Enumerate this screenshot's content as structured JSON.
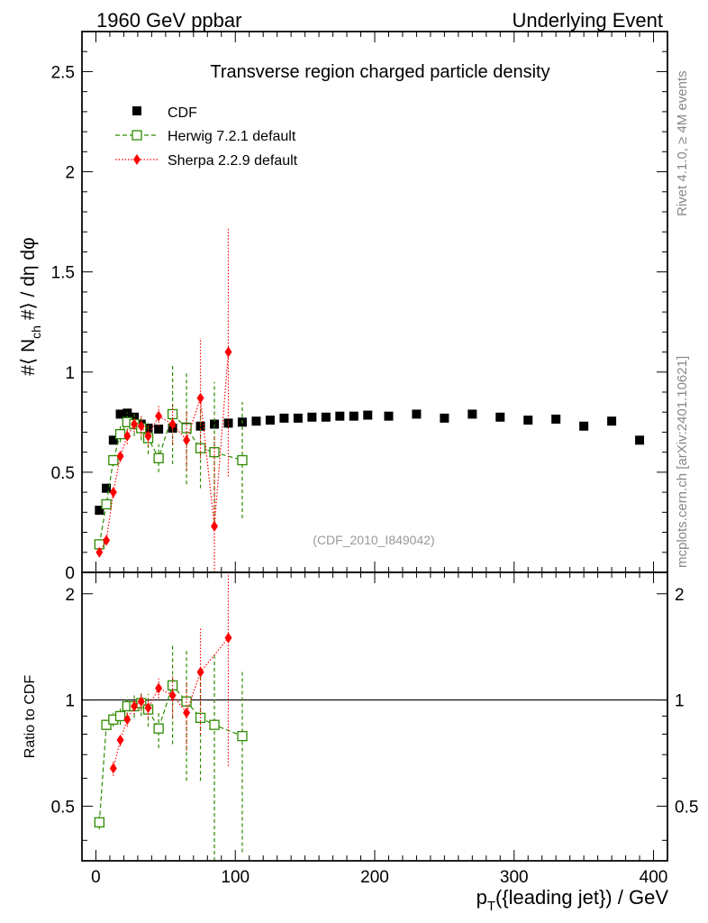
{
  "header": {
    "left": "1960 GeV ppbar",
    "right": "Underlying Event"
  },
  "side_labels": {
    "rivet": "Rivet 4.1.0, ≥ 4M events",
    "mcplots": "mcplots.cern.ch [arXiv:2401.10621]"
  },
  "colors": {
    "cdf": "#000000",
    "herwig": "#2e8b00",
    "sherpa": "#ff0000"
  },
  "chart_data": [
    {
      "type": "scatter",
      "title": "Transverse region charged particle density",
      "watermark": "(CDF_2010_I849042)",
      "ylabel": "#⟨ N_ch #⟩ / dη dφ",
      "ylabel_main": "#⟨ N",
      "ylabel_sub": "ch",
      "ylabel_rest": " #⟩ / dη dφ",
      "xlim": [
        -10,
        410
      ],
      "ylim": [
        0,
        2.7
      ],
      "yticks": [
        0,
        0.5,
        1,
        1.5,
        2,
        2.5
      ],
      "ytick_labels": [
        "0",
        "0.5",
        "1",
        "1.5",
        "2",
        "2.5"
      ],
      "legend": [
        {
          "key": "cdf",
          "label": "CDF"
        },
        {
          "key": "herwig",
          "label": "Herwig 7.2.1 default"
        },
        {
          "key": "sherpa",
          "label": "Sherpa 2.2.9 default"
        }
      ],
      "series": [
        {
          "name": "CDF",
          "key": "cdf",
          "marker": "square",
          "x": [
            2.5,
            7.5,
            12.5,
            17.5,
            22.5,
            27.5,
            32.5,
            37.5,
            45,
            55,
            65,
            75,
            85,
            95,
            105,
            115,
            125,
            135,
            145,
            155,
            165,
            175,
            185,
            195,
            210,
            230,
            250,
            270,
            290,
            310,
            330,
            350,
            370,
            390
          ],
          "y": [
            0.31,
            0.42,
            0.66,
            0.79,
            0.795,
            0.775,
            0.74,
            0.72,
            0.715,
            0.72,
            0.725,
            0.73,
            0.74,
            0.745,
            0.75,
            0.755,
            0.76,
            0.77,
            0.77,
            0.775,
            0.775,
            0.78,
            0.78,
            0.785,
            0.78,
            0.79,
            0.77,
            0.79,
            0.775,
            0.76,
            0.765,
            0.73,
            0.755,
            0.66
          ]
        },
        {
          "name": "Herwig 7.2.1 default",
          "key": "herwig",
          "marker": "open-square",
          "x": [
            2.5,
            7.5,
            12.5,
            17.5,
            22.5,
            27.5,
            32.5,
            37.5,
            45,
            55,
            65,
            75,
            85,
            105
          ],
          "y": [
            0.14,
            0.34,
            0.56,
            0.69,
            0.75,
            0.74,
            0.72,
            0.67,
            0.57,
            0.79,
            0.72,
            0.62,
            0.6,
            0.56
          ],
          "err": [
            0.01,
            0.02,
            0.03,
            0.04,
            0.05,
            0.06,
            0.06,
            0.08,
            0.07,
            0.25,
            0.28,
            0.2,
            0.35,
            0.29
          ]
        },
        {
          "name": "Sherpa 2.2.9 default",
          "key": "sherpa",
          "marker": "diamond",
          "x": [
            2.5,
            7.5,
            12.5,
            17.5,
            22.5,
            27.5,
            32.5,
            37.5,
            45,
            55,
            65,
            75,
            85,
            95
          ],
          "y": [
            0.1,
            0.16,
            0.4,
            0.58,
            0.68,
            0.74,
            0.73,
            0.68,
            0.78,
            0.74,
            0.66,
            0.87,
            0.23,
            1.1
          ],
          "err": [
            0.01,
            0.02,
            0.03,
            0.03,
            0.04,
            0.04,
            0.05,
            0.05,
            0.05,
            0.1,
            0.15,
            0.3,
            0.45,
            0.62
          ]
        }
      ]
    },
    {
      "type": "scatter",
      "title": "",
      "ylabel": "Ratio to CDF",
      "xlabel": "p_T({leading jet}) / GeV",
      "xlabel_main": "p",
      "xlabel_sub": "T",
      "xlabel_rest": "({leading jet}) / GeV",
      "xlim": [
        -10,
        410
      ],
      "ylim": [
        0.35,
        2.3
      ],
      "xticks": [
        0,
        100,
        200,
        300,
        400
      ],
      "xtick_labels": [
        "0",
        "100",
        "200",
        "300",
        "400"
      ],
      "yticks": [
        0.5,
        1,
        2
      ],
      "ytick_labels": [
        "0.5",
        "1",
        "2"
      ],
      "reference_line": 1,
      "series": [
        {
          "name": "Herwig 7.2.1 default",
          "key": "herwig",
          "marker": "open-square",
          "x": [
            2.5,
            7.5,
            12.5,
            17.5,
            22.5,
            27.5,
            32.5,
            37.5,
            45,
            55,
            65,
            75,
            85,
            105
          ],
          "y": [
            0.45,
            0.85,
            0.88,
            0.9,
            0.96,
            0.96,
            0.98,
            0.94,
            0.83,
            1.1,
            0.99,
            0.89,
            0.85,
            0.79
          ],
          "err": [
            0.02,
            0.03,
            0.04,
            0.05,
            0.06,
            0.07,
            0.08,
            0.1,
            0.1,
            0.35,
            0.4,
            0.3,
            0.5,
            0.42
          ]
        },
        {
          "name": "Sherpa 2.2.9 default",
          "key": "sherpa",
          "marker": "diamond",
          "x": [
            12.5,
            17.5,
            22.5,
            27.5,
            32.5,
            37.5,
            45,
            55,
            65,
            75,
            95
          ],
          "y": [
            0.64,
            0.77,
            0.88,
            0.96,
            0.99,
            0.95,
            1.08,
            1.03,
            0.92,
            1.2,
            1.5
          ],
          "err": [
            0.03,
            0.03,
            0.04,
            0.05,
            0.06,
            0.06,
            0.07,
            0.14,
            0.2,
            0.4,
            0.85
          ]
        }
      ]
    }
  ]
}
